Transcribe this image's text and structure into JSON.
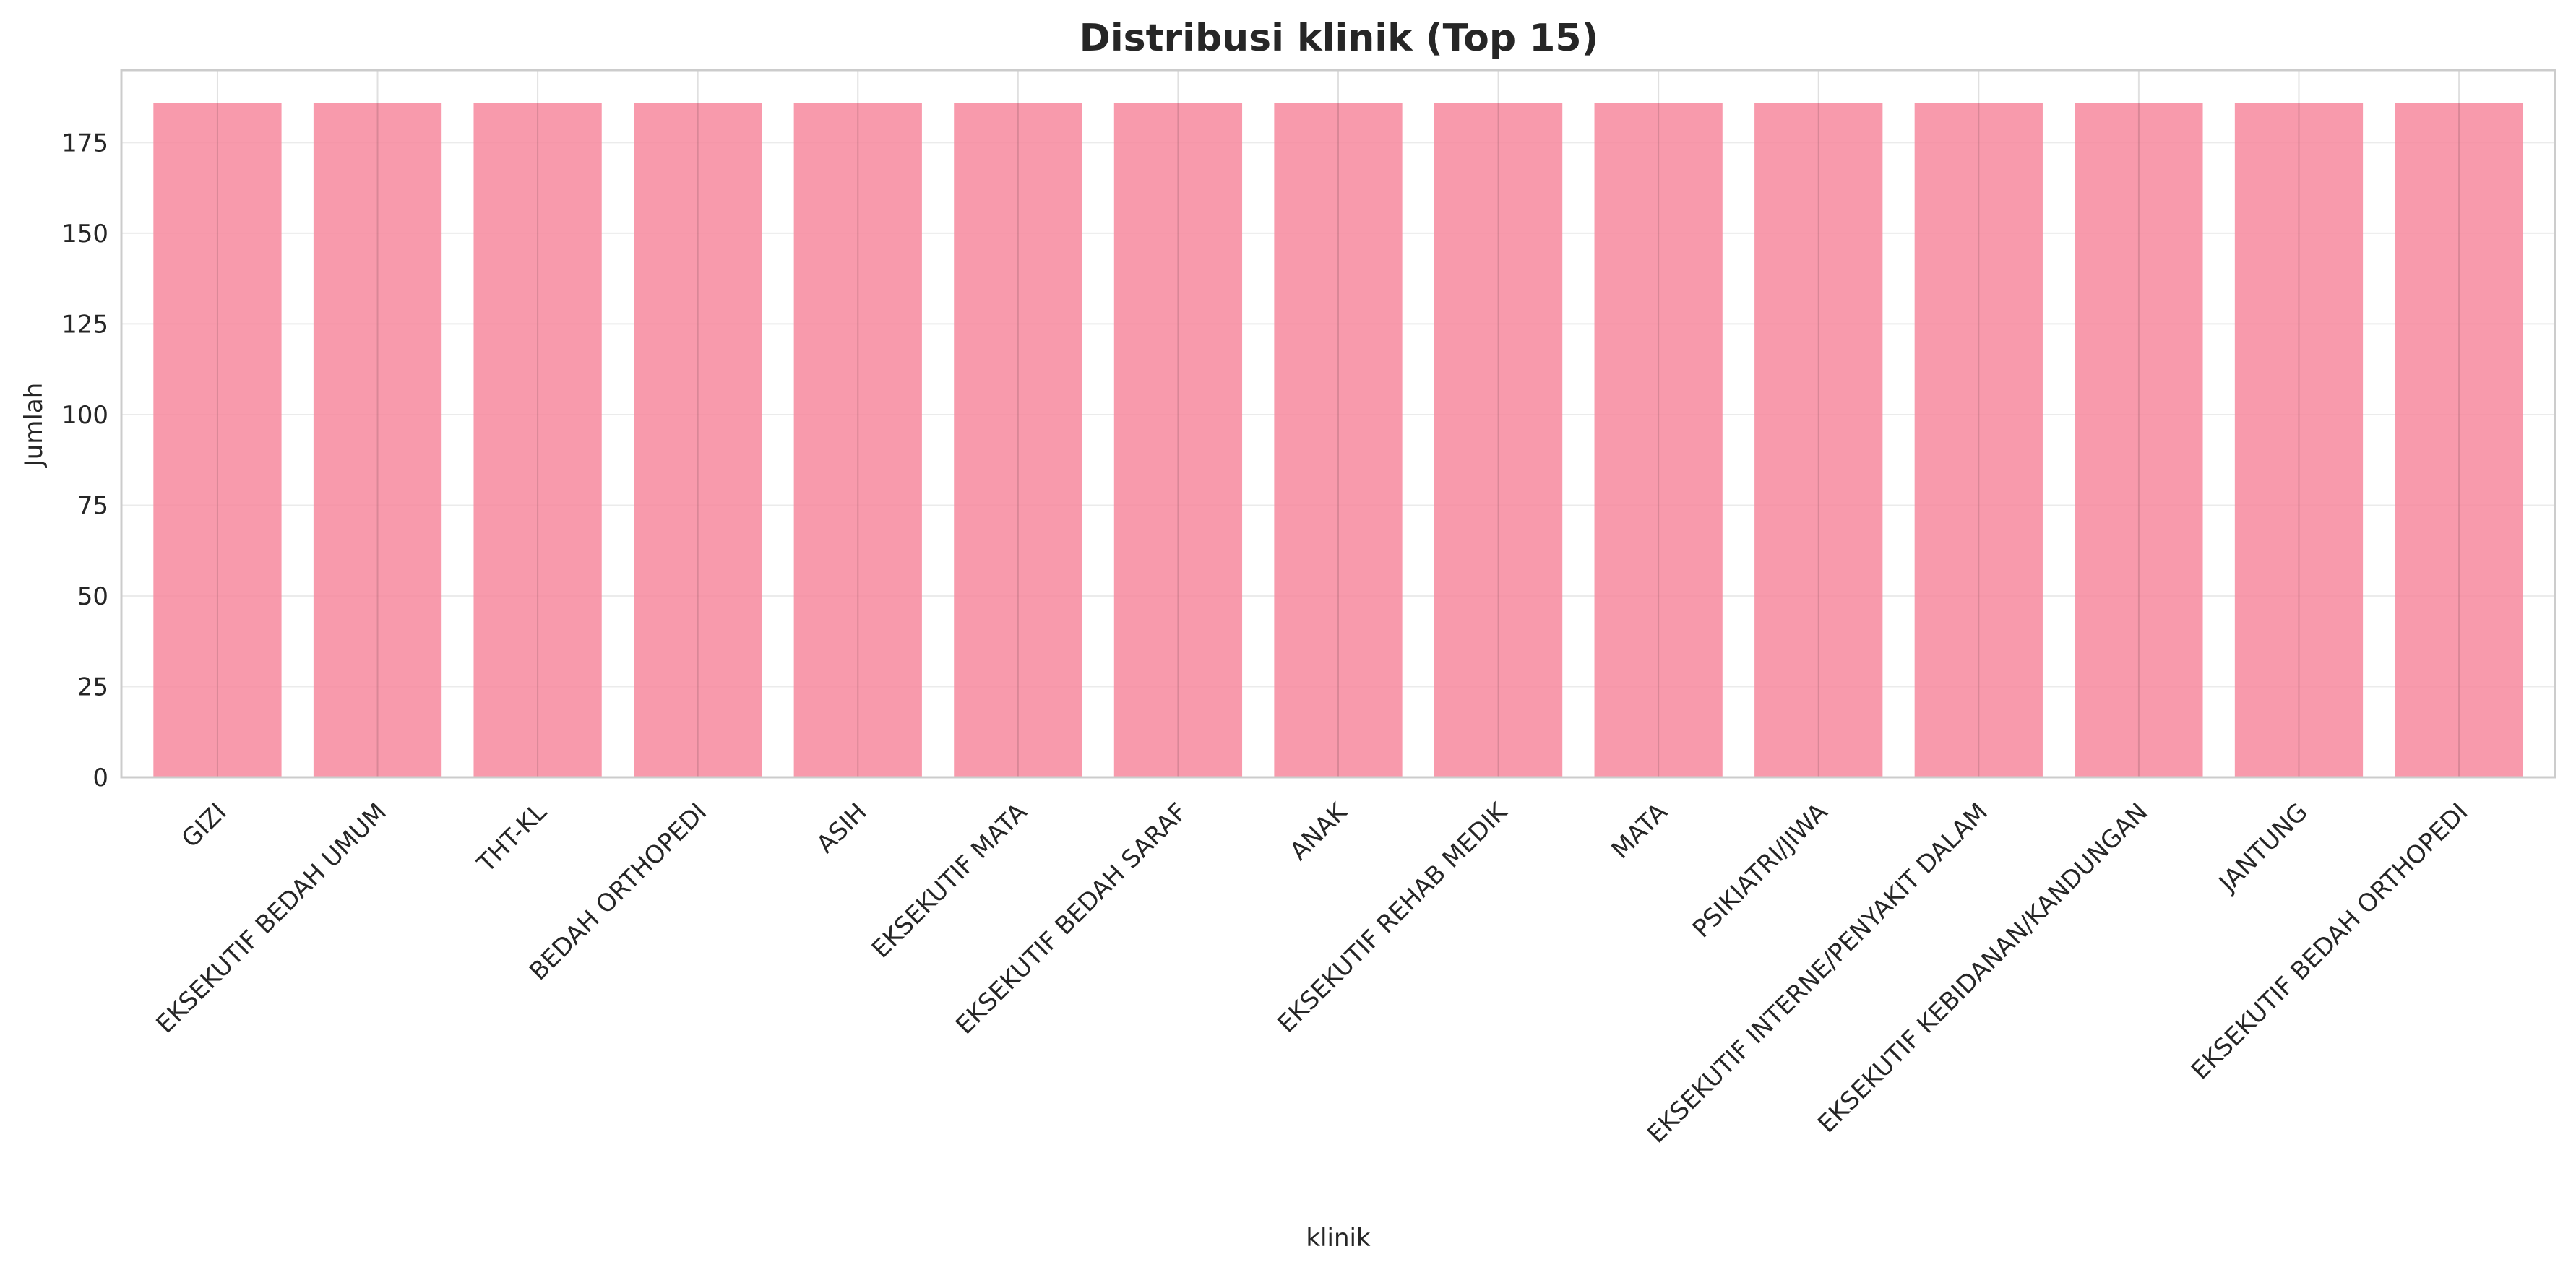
{
  "chart_data": {
    "type": "bar",
    "title": "Distribusi klinik (Top 15)",
    "xlabel": "klinik",
    "ylabel": "Jumlah",
    "ylim": [
      0,
      195
    ],
    "yticks": [
      0,
      25,
      50,
      75,
      100,
      125,
      150,
      175
    ],
    "grid": true,
    "bar_color": "#f7889e",
    "categories": [
      "GIZI",
      "EKSEKUTIF BEDAH UMUM",
      "THT-KL",
      "BEDAH ORTHOPEDI",
      "ASIH",
      "EKSEKUTIF MATA",
      "EKSEKUTIF BEDAH SARAF",
      "ANAK",
      "EKSEKUTIF REHAB MEDIK",
      "MATA",
      "PSIKIATRI/JIWA",
      "EKSEKUTIF INTERNE/PENYAKIT DALAM",
      "EKSEKUTIF KEBIDANAN/KANDUNGAN",
      "JANTUNG",
      "EKSEKUTIF BEDAH ORTHOPEDI"
    ],
    "values": [
      186,
      186,
      186,
      186,
      186,
      186,
      186,
      186,
      186,
      186,
      186,
      186,
      186,
      186,
      186
    ]
  }
}
